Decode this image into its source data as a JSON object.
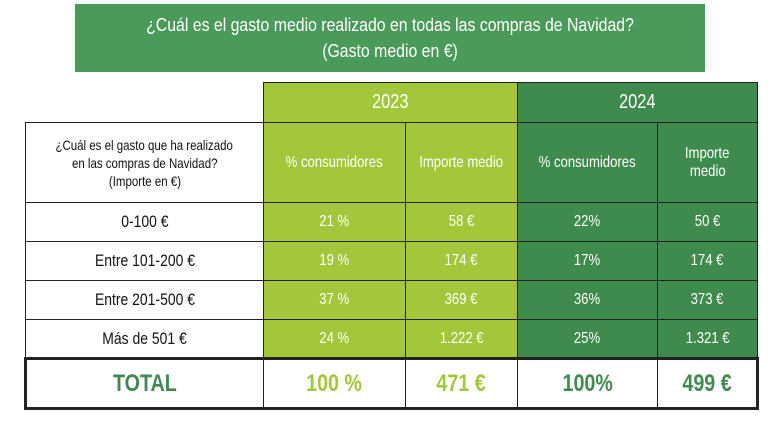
{
  "title": {
    "line1": "¿Cuál es el gasto medio realizado en todas las compras de Navidad?",
    "line2": "(Gasto medio en €)"
  },
  "years": [
    "2023",
    "2024"
  ],
  "question": {
    "line1": "¿Cuál es el gasto que ha realizado",
    "line2": "en las compras de Navidad?",
    "line3": "(Importe en €)"
  },
  "columns": {
    "pct_2023": "% consumidores",
    "amount_2023": "Importe medio",
    "pct_2024": "% consumidores",
    "amount_2024_line1": "Importe",
    "amount_2024_line2": "medio"
  },
  "rows": [
    {
      "range": "0-100 €",
      "pct_2023": "21 %",
      "amount_2023": "58 €",
      "pct_2024": "22%",
      "amount_2024": "50 €"
    },
    {
      "range": "Entre 101-200 €",
      "pct_2023": "19 %",
      "amount_2023": "174 €",
      "pct_2024": "17%",
      "amount_2024": "174 €"
    },
    {
      "range": "Entre 201-500 €",
      "pct_2023": "37 %",
      "amount_2023": "369 €",
      "pct_2024": "36%",
      "amount_2024": "373 €"
    },
    {
      "range": "Más de 501 €",
      "pct_2023": "24 %",
      "amount_2023": "1.222 €",
      "pct_2024": "25%",
      "amount_2024": "1.321 €"
    }
  ],
  "total": {
    "label": "TOTAL",
    "pct_2023": "100 %",
    "amount_2023": "471 €",
    "pct_2024": "100%",
    "amount_2024": "499 €"
  },
  "colors": {
    "banner": "#4a9a5a",
    "year_2023": "#a2c73a",
    "year_2024": "#3f8b4e"
  }
}
